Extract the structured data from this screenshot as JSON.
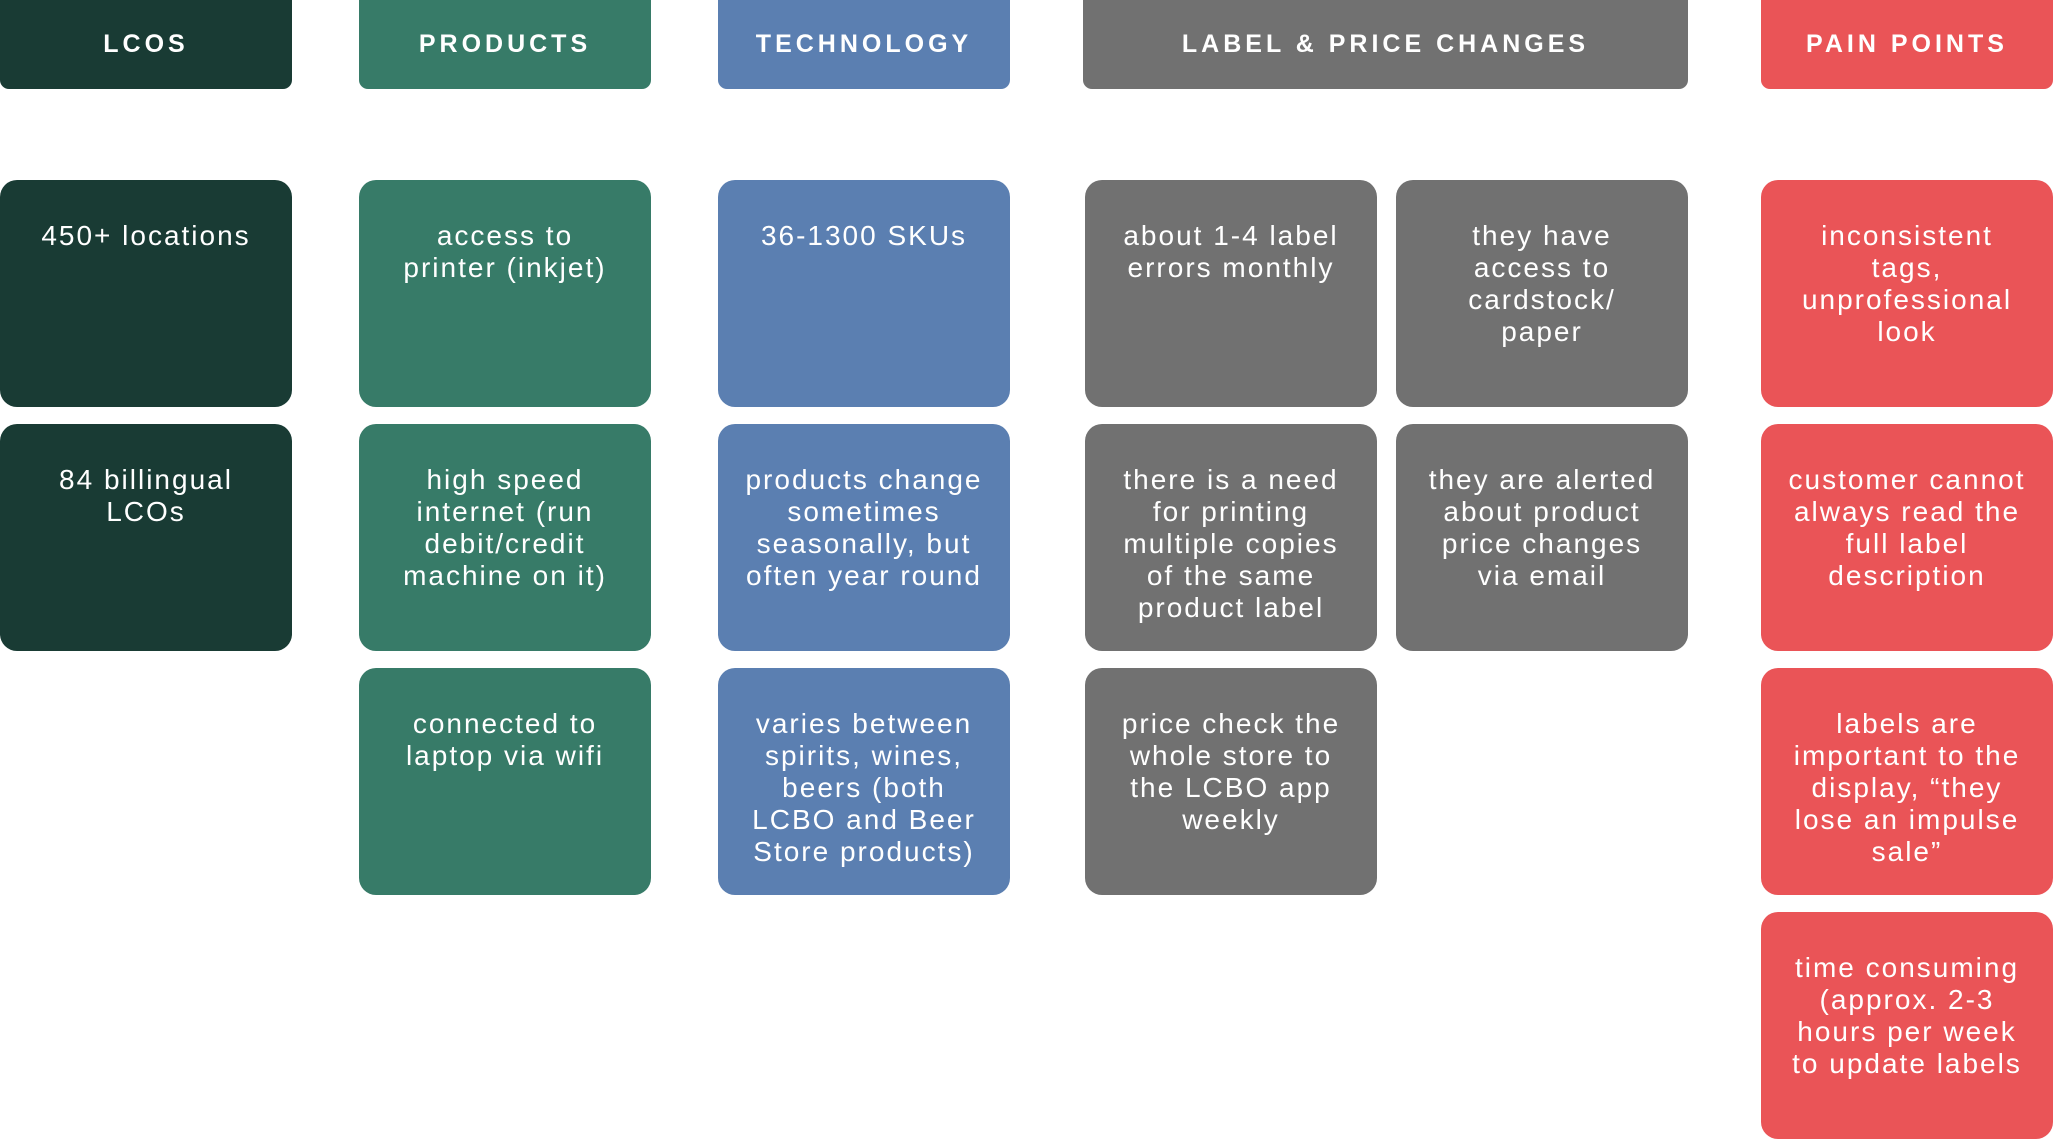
{
  "headers": {
    "lcos": "LCOS",
    "products": "PRODUCTS",
    "technology": "TECHNOLOGY",
    "label_price": "LABEL & PRICE CHANGES",
    "pain_points": "PAIN POINTS"
  },
  "lcos": [
    "450+ locations",
    "84 billingual\nLCOs"
  ],
  "products": [
    "access to\nprinter (inkjet)",
    "high speed\ninternet (run\ndebit/credit\nmachine on it)",
    "connected to\nlaptop via wifi"
  ],
  "technology": [
    "36-1300 SKUs",
    "products change\nsometimes\nseasonally, but\noften year round",
    "varies between\nspirits, wines,\nbeers (both\nLCBO and Beer\nStore products)"
  ],
  "label_price": [
    "about 1-4 label\nerrors monthly",
    "they have\naccess to\ncardstock/\npaper",
    "there is a need\nfor printing\nmultiple copies\nof the same\nproduct label",
    "they are alerted\nabout product\nprice changes\nvia email",
    "price check the\nwhole store to\nthe LCBO app\nweekly"
  ],
  "pain_points": [
    "inconsistent\ntags,\nunprofessional\nlook",
    "customer cannot\nalways read the\nfull label\ndescription",
    "labels are\nimportant to the\ndisplay, “they\nlose an impulse\nsale”",
    "time consuming\n(approx. 2-3\nhours per week\nto update labels"
  ]
}
